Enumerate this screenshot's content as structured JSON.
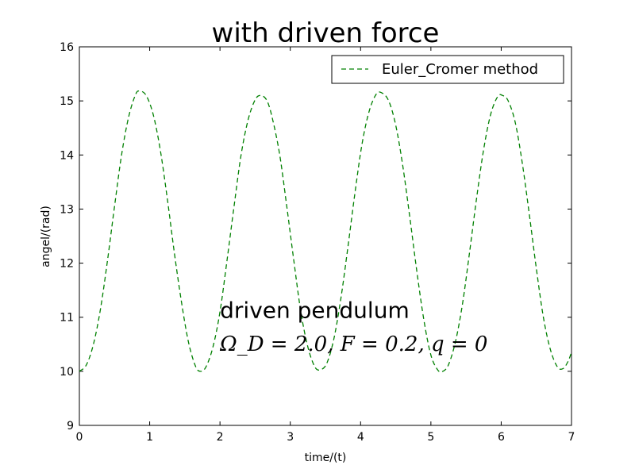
{
  "chart_data": {
    "type": "line",
    "title": "with driven force",
    "xlabel": "time/(t)",
    "ylabel": "angel/(rad)",
    "xlim": [
      0,
      7
    ],
    "ylim": [
      9,
      16
    ],
    "xticks": [
      "0",
      "1",
      "2",
      "3",
      "4",
      "5",
      "6",
      "7"
    ],
    "yticks": [
      "9",
      "10",
      "11",
      "12",
      "13",
      "14",
      "15",
      "16"
    ],
    "grid": false,
    "legend_position": "top-right",
    "series": [
      {
        "name": "Euler_Cromer method",
        "color": "#008000",
        "style": "dashed",
        "points": [
          [
            0.0,
            10.0
          ],
          [
            0.1,
            10.12
          ],
          [
            0.2,
            10.5
          ],
          [
            0.3,
            11.15
          ],
          [
            0.4,
            12.05
          ],
          [
            0.5,
            13.05
          ],
          [
            0.6,
            14.0
          ],
          [
            0.7,
            14.7
          ],
          [
            0.8,
            15.12
          ],
          [
            0.86,
            15.18
          ],
          [
            0.95,
            15.1
          ],
          [
            1.05,
            14.75
          ],
          [
            1.15,
            14.1
          ],
          [
            1.25,
            13.2
          ],
          [
            1.35,
            12.2
          ],
          [
            1.45,
            11.3
          ],
          [
            1.55,
            10.55
          ],
          [
            1.65,
            10.1
          ],
          [
            1.72,
            10.0
          ],
          [
            1.8,
            10.08
          ],
          [
            1.9,
            10.45
          ],
          [
            2.0,
            11.1
          ],
          [
            2.1,
            12.05
          ],
          [
            2.2,
            13.05
          ],
          [
            2.3,
            14.0
          ],
          [
            2.4,
            14.65
          ],
          [
            2.5,
            15.02
          ],
          [
            2.58,
            15.1
          ],
          [
            2.67,
            15.0
          ],
          [
            2.75,
            14.65
          ],
          [
            2.85,
            14.0
          ],
          [
            2.95,
            13.05
          ],
          [
            3.05,
            12.05
          ],
          [
            3.15,
            11.1
          ],
          [
            3.25,
            10.45
          ],
          [
            3.35,
            10.08
          ],
          [
            3.43,
            10.03
          ],
          [
            3.52,
            10.15
          ],
          [
            3.62,
            10.6
          ],
          [
            3.72,
            11.35
          ],
          [
            3.82,
            12.3
          ],
          [
            3.92,
            13.3
          ],
          [
            4.02,
            14.2
          ],
          [
            4.12,
            14.8
          ],
          [
            4.22,
            15.12
          ],
          [
            4.3,
            15.15
          ],
          [
            4.4,
            15.0
          ],
          [
            4.5,
            14.55
          ],
          [
            4.6,
            13.8
          ],
          [
            4.7,
            12.85
          ],
          [
            4.8,
            11.85
          ],
          [
            4.9,
            10.95
          ],
          [
            5.0,
            10.3
          ],
          [
            5.1,
            10.02
          ],
          [
            5.17,
            10.0
          ],
          [
            5.25,
            10.12
          ],
          [
            5.35,
            10.55
          ],
          [
            5.45,
            11.25
          ],
          [
            5.55,
            12.2
          ],
          [
            5.65,
            13.2
          ],
          [
            5.75,
            14.1
          ],
          [
            5.85,
            14.75
          ],
          [
            5.95,
            15.08
          ],
          [
            6.02,
            15.1
          ],
          [
            6.1,
            15.0
          ],
          [
            6.2,
            14.6
          ],
          [
            6.3,
            13.85
          ],
          [
            6.4,
            12.9
          ],
          [
            6.5,
            11.9
          ],
          [
            6.6,
            11.0
          ],
          [
            6.7,
            10.4
          ],
          [
            6.8,
            10.08
          ],
          [
            6.88,
            10.05
          ],
          [
            6.95,
            10.18
          ],
          [
            7.0,
            10.35
          ]
        ]
      }
    ],
    "annotations": [
      {
        "text": "driven pendulum",
        "x": 2.0,
        "y": 11.0
      },
      {
        "text": "Ω_D = 2.0, F = 0.2, q = 0",
        "x": 2.0,
        "y": 10.5
      }
    ]
  }
}
